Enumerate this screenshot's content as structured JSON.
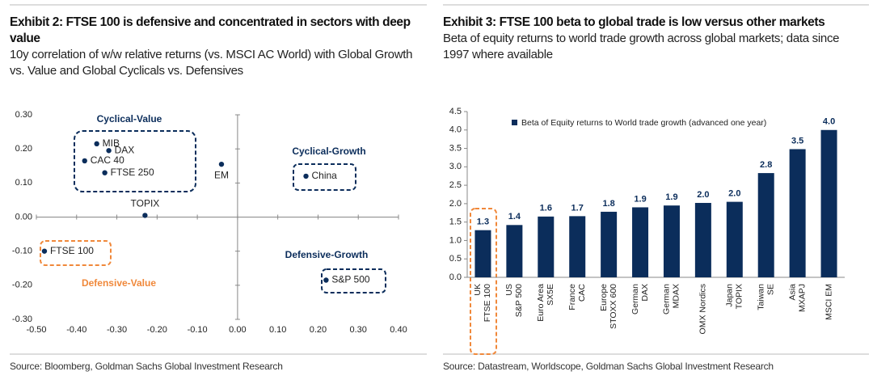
{
  "chart_data": [
    {
      "type": "scatter",
      "title": "Exhibit 2: FTSE 100 is defensive and concentrated in sectors with deep value",
      "subtitle": "10y correlation of w/w relative returns (vs. MSCI AC World) with Global Growth vs. Value and Global Cyclicals vs. Defensives",
      "points": [
        {
          "label": "MIB",
          "x": -0.35,
          "y": 0.215
        },
        {
          "label": "DAX",
          "x": -0.32,
          "y": 0.195
        },
        {
          "label": "CAC 40",
          "x": -0.38,
          "y": 0.165
        },
        {
          "label": "FTSE 250",
          "x": -0.33,
          "y": 0.13
        },
        {
          "label": "EM",
          "x": -0.04,
          "y": 0.155
        },
        {
          "label": "China",
          "x": 0.17,
          "y": 0.12
        },
        {
          "label": "TOPIX",
          "x": -0.23,
          "y": 0.005
        },
        {
          "label": "FTSE 100",
          "x": -0.48,
          "y": -0.1
        },
        {
          "label": "S&P 500",
          "x": 0.22,
          "y": -0.185
        }
      ],
      "color": "#0b2d5b",
      "annotations": [
        "Cyclical-Value",
        "Cyclical-Growth",
        "Defensive-Growth",
        "Defensive-Value"
      ],
      "xlim": [
        -0.5,
        0.4
      ],
      "xticks": [
        {
          "value": -0.5,
          "label": "-0.50"
        },
        {
          "value": -0.4,
          "label": "-0.40"
        },
        {
          "value": -0.3,
          "label": "-0.30"
        },
        {
          "value": -0.2,
          "label": "-0.20"
        },
        {
          "value": -0.1,
          "label": "-0.10"
        },
        {
          "value": 0,
          "label": "0.00"
        },
        {
          "value": 0.1,
          "label": "0.10"
        },
        {
          "value": 0.2,
          "label": "0.20"
        },
        {
          "value": 0.3,
          "label": "0.30"
        },
        {
          "value": 0.4,
          "label": "0.40"
        }
      ],
      "ylim": [
        -0.3,
        0.3
      ],
      "yticks": [
        {
          "value": 0.3,
          "label": "0.30"
        },
        {
          "value": 0.2,
          "label": "0.20"
        },
        {
          "value": 0.1,
          "label": "0.10"
        },
        {
          "value": 0,
          "label": "0.00"
        },
        {
          "value": -0.1,
          "label": "-0.10"
        },
        {
          "value": -0.2,
          "label": "-0.20"
        },
        {
          "value": -0.3,
          "label": "-0.30"
        }
      ],
      "source": "Source: Bloomberg, Goldman Sachs Global Investment Research"
    },
    {
      "type": "bar",
      "title": "Exhibit 3: FTSE 100 beta to global trade is low versus other markets",
      "subtitle": "Beta of equity returns to world trade growth across global markets; data since 1997 where available",
      "categories": [
        [
          "UK",
          "FTSE 100"
        ],
        [
          "US",
          "S&P 500"
        ],
        [
          "Euro Area",
          "SX5E"
        ],
        [
          "France",
          "CAC"
        ],
        [
          "Europe",
          "STOXX 600"
        ],
        [
          "German",
          "DAX"
        ],
        [
          "German",
          "MDAX"
        ],
        [
          "OMX Nordics"
        ],
        [
          "Japan",
          "TOPIX"
        ],
        [
          "Taiwan",
          "SE"
        ],
        [
          "Asia",
          "MXAPJ"
        ],
        [
          "MSCI EM"
        ]
      ],
      "series": [
        {
          "name": "Beta of Equity returns to World trade growth (advanced one year)",
          "color": "#0b2d5b",
          "values": [
            1.28,
            1.42,
            1.65,
            1.66,
            1.78,
            1.9,
            1.95,
            2.02,
            2.05,
            2.83,
            3.48,
            4.0
          ],
          "value_labels": [
            "1.3",
            "1.4",
            "1.6",
            "1.7",
            "1.8",
            "1.9",
            "1.9",
            "2.0",
            "2.0",
            "2.8",
            "3.5",
            "4.0"
          ]
        }
      ],
      "ylim": [
        0,
        4.5
      ],
      "yticks": [
        {
          "value": 0,
          "label": "0.0"
        },
        {
          "value": 0.5,
          "label": "0.5"
        },
        {
          "value": 1,
          "label": "1.0"
        },
        {
          "value": 1.5,
          "label": "1.5"
        },
        {
          "value": 2,
          "label": "2.0"
        },
        {
          "value": 2.5,
          "label": "2.5"
        },
        {
          "value": 3,
          "label": "3.0"
        },
        {
          "value": 3.5,
          "label": "3.5"
        },
        {
          "value": 4,
          "label": "4.0"
        },
        {
          "value": 4.5,
          "label": "4.5"
        }
      ],
      "legend": "top-left",
      "source": "Source: Datastream, Worldscope, Goldman Sachs Global Investment Research"
    }
  ]
}
